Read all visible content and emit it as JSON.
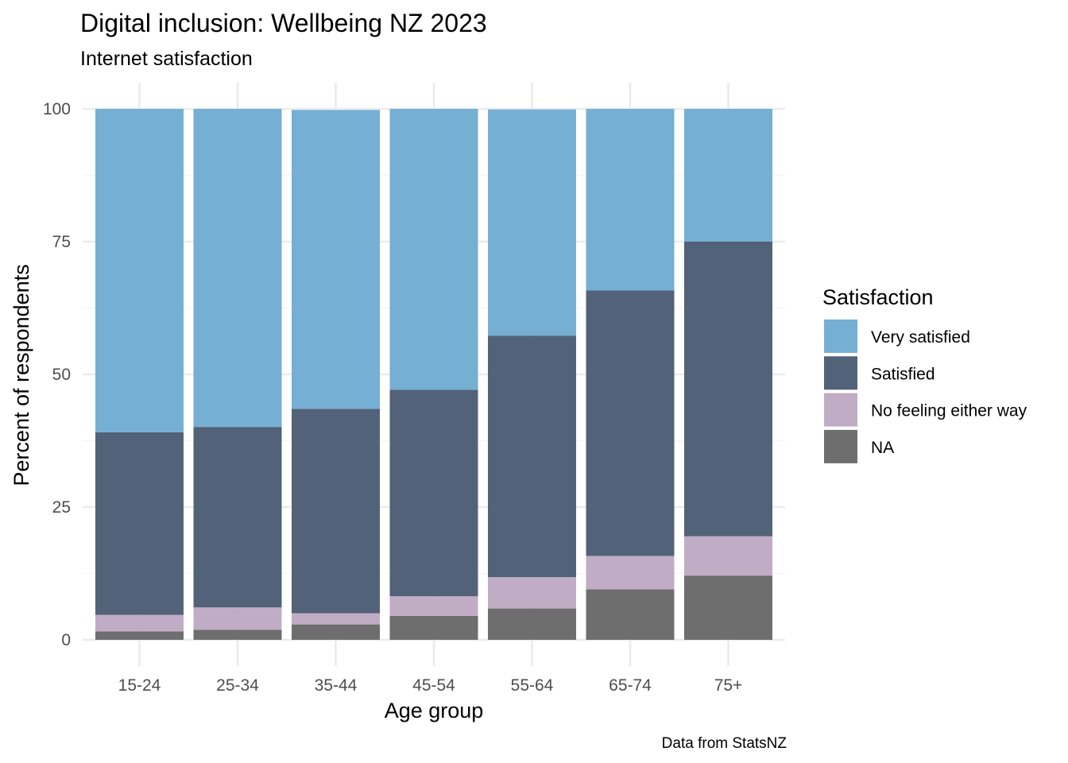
{
  "chart_data": {
    "type": "bar",
    "stacked": true,
    "title": "Digital inclusion: Wellbeing NZ 2023",
    "subtitle": "Internet satisfaction",
    "xlabel": "Age group",
    "ylabel": "Percent of respondents",
    "caption": "Data from StatsNZ",
    "ylim": [
      0,
      100
    ],
    "yticks": [
      0,
      25,
      50,
      75,
      100
    ],
    "grid": true,
    "legend": {
      "title": "Satisfaction",
      "position": "right"
    },
    "categories": [
      "15-24",
      "25-34",
      "35-44",
      "45-54",
      "55-64",
      "65-74",
      "75+"
    ],
    "series": [
      {
        "name": "NA",
        "color": "#6e6e6e",
        "values": [
          1.6,
          1.9,
          2.9,
          4.5,
          5.9,
          9.5,
          12.1
        ]
      },
      {
        "name": "No feeling either way",
        "color": "#c1acc5",
        "values": [
          3.1,
          4.2,
          2.1,
          3.7,
          5.9,
          6.3,
          7.4
        ]
      },
      {
        "name": "Satisfied",
        "color": "#526278",
        "values": [
          34.4,
          34.0,
          38.5,
          38.9,
          45.5,
          50.0,
          55.5
        ]
      },
      {
        "name": "Very satisfied",
        "color": "#75afd4",
        "values": [
          60.9,
          59.9,
          56.3,
          52.9,
          42.6,
          34.2,
          25.0
        ]
      }
    ],
    "legend_order": [
      "Very satisfied",
      "Satisfied",
      "No feeling either way",
      "NA"
    ]
  }
}
